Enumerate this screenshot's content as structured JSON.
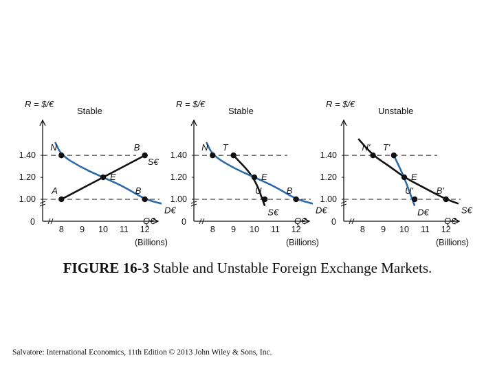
{
  "chart_data": [
    {
      "type": "line",
      "title": "Stable",
      "ylabel": "R = $/€",
      "xlabel": "(Billions)",
      "x_axis_label": "Q€",
      "xlim": [
        7.1,
        12.9
      ],
      "ylim": [
        0.8,
        1.72
      ],
      "x_ticks": [
        "8",
        "9",
        "10",
        "11",
        "12"
      ],
      "y_ticks": [
        "1.40",
        "1.20",
        "1.00"
      ],
      "origin_label": "0",
      "series": [
        {
          "name": "S€",
          "color": "#111111",
          "points": [
            [
              8,
              1.0
            ],
            [
              10,
              1.2
            ],
            [
              12,
              1.4
            ]
          ]
        },
        {
          "name": "D€",
          "color": "#2e6aa6",
          "points": [
            [
              7.7,
              1.52
            ],
            [
              8,
              1.4
            ],
            [
              9,
              1.285
            ],
            [
              10,
              1.2
            ],
            [
              11,
              1.115
            ],
            [
              12,
              1.0
            ],
            [
              12.8,
              0.96
            ]
          ]
        }
      ],
      "points": [
        {
          "label": "N",
          "x": 8,
          "y": 1.4
        },
        {
          "label": "B",
          "x": 12,
          "y": 1.4
        },
        {
          "label": "E",
          "x": 10,
          "y": 1.2
        },
        {
          "label": "A",
          "x": 8,
          "y": 1.0
        },
        {
          "label": "B",
          "x": 12,
          "y": 1.0
        }
      ],
      "dashed_levels": [
        1.4,
        1.0
      ]
    },
    {
      "type": "line",
      "title": "Stable",
      "ylabel": "R = $/€",
      "xlabel": "(Billions)",
      "x_axis_label": "Q€",
      "xlim": [
        7.1,
        12.9
      ],
      "ylim": [
        0.8,
        1.72
      ],
      "x_ticks": [
        "8",
        "9",
        "10",
        "11",
        "12"
      ],
      "y_ticks": [
        "1.40",
        "1.20",
        "1.00"
      ],
      "origin_label": "0",
      "series": [
        {
          "name": "S€",
          "color": "#111111",
          "points": [
            [
              9,
              1.4
            ],
            [
              10,
              1.2
            ],
            [
              10.5,
              0.94
            ]
          ]
        },
        {
          "name": "D€",
          "color": "#2e6aa6",
          "points": [
            [
              7.7,
              1.52
            ],
            [
              8,
              1.4
            ],
            [
              9,
              1.285
            ],
            [
              10,
              1.2
            ],
            [
              11,
              1.115
            ],
            [
              12,
              1.0
            ],
            [
              12.8,
              0.96
            ]
          ]
        }
      ],
      "points": [
        {
          "label": "N",
          "x": 8,
          "y": 1.4
        },
        {
          "label": "T",
          "x": 9,
          "y": 1.4
        },
        {
          "label": "E",
          "x": 10,
          "y": 1.2
        },
        {
          "label": "U",
          "x": 10.5,
          "y": 1.0
        },
        {
          "label": "B",
          "x": 12,
          "y": 1.0
        }
      ],
      "dashed_levels": [
        1.4,
        1.0
      ]
    },
    {
      "type": "line",
      "title": "Unstable",
      "ylabel": "R = $/€",
      "xlabel": "(Billions)",
      "x_axis_label": "Q€",
      "xlim": [
        7.1,
        12.9
      ],
      "ylim": [
        0.8,
        1.72
      ],
      "x_ticks": [
        "8",
        "9",
        "10",
        "11",
        "12"
      ],
      "y_ticks": [
        "1.40",
        "1.20",
        "1.00"
      ],
      "origin_label": "0",
      "series": [
        {
          "name": "S€",
          "color": "#111111",
          "points": [
            [
              7.8,
              1.55
            ],
            [
              8.5,
              1.4
            ],
            [
              9.3,
              1.3
            ],
            [
              10,
              1.2
            ],
            [
              11,
              1.1
            ],
            [
              12,
              1.0
            ],
            [
              12.6,
              0.96
            ]
          ]
        },
        {
          "name": "D€",
          "color": "#2e6aa6",
          "points": [
            [
              9.5,
              1.4
            ],
            [
              10,
              1.2
            ],
            [
              10.5,
              0.94
            ]
          ]
        }
      ],
      "points": [
        {
          "label": "N'",
          "x": 8.5,
          "y": 1.4
        },
        {
          "label": "T'",
          "x": 9.5,
          "y": 1.4
        },
        {
          "label": "E",
          "x": 10,
          "y": 1.2
        },
        {
          "label": "U'",
          "x": 10.5,
          "y": 1.0
        },
        {
          "label": "B'",
          "x": 12,
          "y": 1.0
        }
      ],
      "dashed_levels": [
        1.4,
        1.0
      ]
    }
  ],
  "caption": {
    "number": "FIGURE 16-3",
    "text": "Stable and Unstable Foreign Exchange Markets."
  },
  "credit": "Salvatore: International Economics, 11th Edition © 2013 John Wiley & Sons, Inc."
}
